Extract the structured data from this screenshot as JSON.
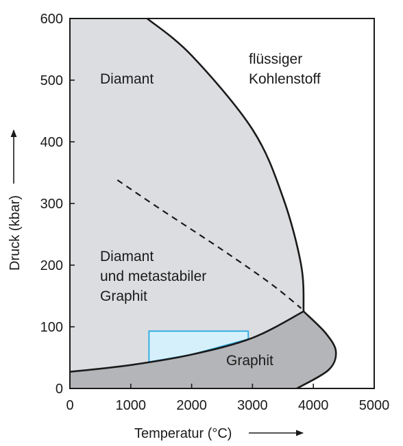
{
  "chart_data": {
    "type": "phase-diagram",
    "xlabel": "Temperatur (°C)",
    "ylabel": "Druck (kbar)",
    "xlim": [
      0,
      5000
    ],
    "ylim": [
      0,
      600
    ],
    "x_ticks": [
      0,
      1000,
      2000,
      3000,
      4000,
      5000
    ],
    "y_ticks": [
      0,
      100,
      200,
      300,
      400,
      500,
      600
    ],
    "grid": false,
    "triple_point": [
      3840,
      125
    ],
    "boundaries": {
      "graphite_diamond": [
        [
          0,
          27
        ],
        [
          1000,
          38
        ],
        [
          2000,
          55
        ],
        [
          3000,
          82
        ],
        [
          3840,
          125
        ]
      ],
      "diamond_liquid": [
        [
          1270,
          600
        ],
        [
          2000,
          540
        ],
        [
          3000,
          420
        ],
        [
          3500,
          310
        ],
        [
          3800,
          200
        ],
        [
          3840,
          125
        ]
      ],
      "graphite_liquid": [
        [
          3840,
          125
        ],
        [
          4200,
          90
        ],
        [
          4370,
          60
        ],
        [
          4250,
          30
        ],
        [
          3730,
          0
        ]
      ],
      "metastable_dashed": [
        [
          780,
          338
        ],
        [
          1500,
          290
        ],
        [
          2500,
          225
        ],
        [
          3300,
          170
        ],
        [
          3800,
          130
        ]
      ]
    },
    "highlight_box": {
      "x": [
        1300,
        2930
      ],
      "y_top": 93
    },
    "regions": [
      {
        "name": "diamond",
        "label_lines": [
          "Diamant"
        ],
        "color": "#dcdde0"
      },
      {
        "name": "liquid",
        "label_lines": [
          "flüssiger",
          "Kohlenstoff"
        ],
        "color": "#ffffff"
      },
      {
        "name": "diamond-metastable-graphite",
        "label_lines": [
          "Diamant",
          "und metastabiler",
          "Graphit"
        ],
        "color": "#dcdde0"
      },
      {
        "name": "graphite",
        "label_lines": [
          "Graphit"
        ],
        "color": "#b4b5b8"
      }
    ],
    "colors": {
      "highlight_fill": "#d6f0fb",
      "highlight_stroke": "#29abe2",
      "line": "#1a1a1a"
    }
  }
}
